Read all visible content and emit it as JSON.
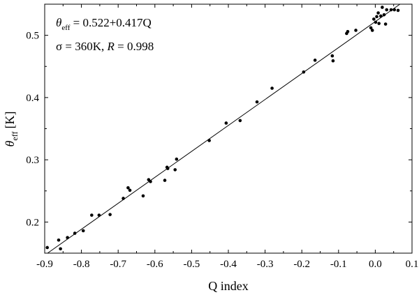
{
  "chart_data": {
    "type": "scatter",
    "xlabel": "Q index",
    "ylabel": {
      "symbol": "θ",
      "subscript": "eff",
      "unit": "[K]"
    },
    "xlim": [
      -0.9,
      0.1
    ],
    "ylim": [
      0.15,
      0.55
    ],
    "xticks": [
      "-0.9",
      "-0.8",
      "-0.7",
      "-0.6",
      "-0.5",
      "-0.4",
      "-0.3",
      "-0.2",
      "-0.1",
      "0.0",
      "0.1"
    ],
    "xtick_values": [
      -0.9,
      -0.8,
      -0.7,
      -0.6,
      -0.5,
      -0.4,
      -0.3,
      -0.2,
      -0.1,
      0.0,
      0.1
    ],
    "yticks": [
      "0.2",
      "0.3",
      "0.4",
      "0.5"
    ],
    "ytick_values": [
      0.2,
      0.3,
      0.4,
      0.5
    ],
    "grid": false,
    "annotation": {
      "line1_symbol": "θ",
      "line1_subscript": "eff",
      "line1_rest": " = 0.522+0.417Q",
      "line2_a": "σ = 360K, ",
      "line2_italic": "R",
      "line2_b": " = 0.998"
    },
    "fit_line": {
      "intercept": 0.522,
      "slope": 0.417
    },
    "points": [
      {
        "x": -0.893,
        "y": 0.159
      },
      {
        "x": -0.862,
        "y": 0.171
      },
      {
        "x": -0.857,
        "y": 0.157
      },
      {
        "x": -0.838,
        "y": 0.175
      },
      {
        "x": -0.818,
        "y": 0.182
      },
      {
        "x": -0.795,
        "y": 0.186
      },
      {
        "x": -0.772,
        "y": 0.211
      },
      {
        "x": -0.752,
        "y": 0.211
      },
      {
        "x": -0.722,
        "y": 0.212
      },
      {
        "x": -0.686,
        "y": 0.238
      },
      {
        "x": -0.673,
        "y": 0.255
      },
      {
        "x": -0.668,
        "y": 0.251
      },
      {
        "x": -0.632,
        "y": 0.242
      },
      {
        "x": -0.617,
        "y": 0.268
      },
      {
        "x": -0.612,
        "y": 0.265
      },
      {
        "x": -0.573,
        "y": 0.267
      },
      {
        "x": -0.567,
        "y": 0.288
      },
      {
        "x": -0.565,
        "y": 0.286
      },
      {
        "x": -0.545,
        "y": 0.284
      },
      {
        "x": -0.541,
        "y": 0.301
      },
      {
        "x": -0.452,
        "y": 0.331
      },
      {
        "x": -0.406,
        "y": 0.359
      },
      {
        "x": -0.368,
        "y": 0.363
      },
      {
        "x": -0.322,
        "y": 0.393
      },
      {
        "x": -0.281,
        "y": 0.415
      },
      {
        "x": -0.195,
        "y": 0.441
      },
      {
        "x": -0.164,
        "y": 0.46
      },
      {
        "x": -0.117,
        "y": 0.467
      },
      {
        "x": -0.115,
        "y": 0.459
      },
      {
        "x": -0.078,
        "y": 0.503
      },
      {
        "x": -0.075,
        "y": 0.506
      },
      {
        "x": -0.053,
        "y": 0.508
      },
      {
        "x": -0.012,
        "y": 0.512
      },
      {
        "x": -0.008,
        "y": 0.508
      },
      {
        "x": -0.004,
        "y": 0.526
      },
      {
        "x": 0.001,
        "y": 0.521
      },
      {
        "x": 0.004,
        "y": 0.53
      },
      {
        "x": 0.008,
        "y": 0.536
      },
      {
        "x": 0.01,
        "y": 0.519
      },
      {
        "x": 0.015,
        "y": 0.531
      },
      {
        "x": 0.019,
        "y": 0.545
      },
      {
        "x": 0.024,
        "y": 0.533
      },
      {
        "x": 0.028,
        "y": 0.518
      },
      {
        "x": 0.031,
        "y": 0.541
      },
      {
        "x": 0.043,
        "y": 0.541
      },
      {
        "x": 0.052,
        "y": 0.541
      },
      {
        "x": 0.062,
        "y": 0.54
      }
    ],
    "colors": {
      "marker": "#000000",
      "line": "#000000",
      "background": "#ffffff"
    }
  }
}
